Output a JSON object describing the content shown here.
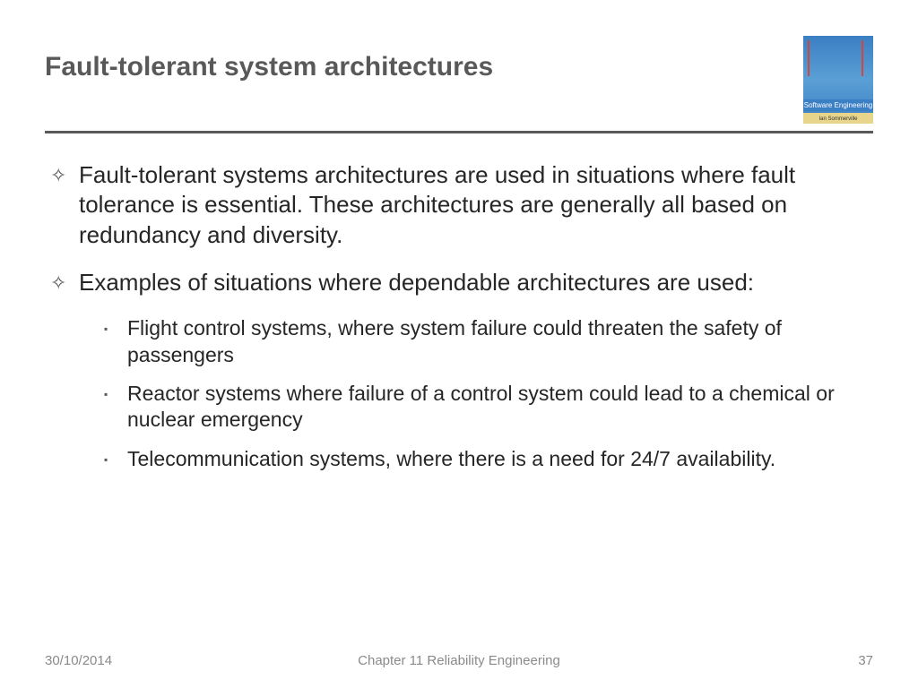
{
  "title": "Fault-tolerant system architectures",
  "book": {
    "label": "Software Engineering",
    "author": "Ian Sommerville"
  },
  "bullets": [
    {
      "text": "Fault-tolerant systems architectures are used in situations where fault tolerance is essential. These architectures are generally all based on redundancy and diversity."
    },
    {
      "text": "Examples of situations where dependable architectures are used:"
    }
  ],
  "subbullets": [
    {
      "text": "Flight control systems, where system failure could threaten the safety of passengers"
    },
    {
      "text": "Reactor systems where failure of a control system could lead to a chemical or nuclear emergency"
    },
    {
      "text": "Telecommunication systems, where there is a need for 24/7 availability."
    }
  ],
  "footer": {
    "date": "30/10/2014",
    "chapter": "Chapter 11 Reliability Engineering",
    "page": "37"
  },
  "colors": {
    "title_color": "#595959",
    "text_color": "#262626",
    "footer_color": "#8a8a8a",
    "divider_color": "#595959"
  }
}
